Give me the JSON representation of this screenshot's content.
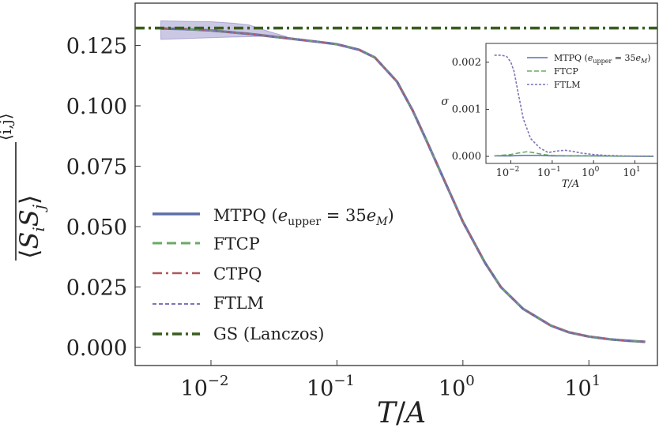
{
  "chart_data": [
    {
      "id": "main",
      "type": "line",
      "xscale": "log",
      "xlim": [
        0.0025,
        35
      ],
      "ylim": [
        -0.0075,
        0.1425
      ],
      "xlabel": "T/A",
      "ylabel": "⟨SᵢSⱼ⟩ (overline, averaged over ⟨i,j⟩)",
      "xticks": [
        {
          "value": 0.01,
          "label": "10",
          "exp": "−2"
        },
        {
          "value": 0.1,
          "label": "10",
          "exp": "−1"
        },
        {
          "value": 1,
          "label": "10",
          "exp": "0"
        },
        {
          "value": 10,
          "label": "10",
          "exp": "1"
        }
      ],
      "yticks": [
        {
          "value": 0.0,
          "label": "0.000"
        },
        {
          "value": 0.025,
          "label": "0.025"
        },
        {
          "value": 0.05,
          "label": "0.050"
        },
        {
          "value": 0.075,
          "label": "0.075"
        },
        {
          "value": 0.1,
          "label": "0.100"
        },
        {
          "value": 0.125,
          "label": "0.125"
        }
      ],
      "legend_position": "lower-left",
      "grid": false,
      "x": [
        0.004,
        0.006,
        0.01,
        0.02,
        0.04,
        0.07,
        0.1,
        0.15,
        0.2,
        0.3,
        0.4,
        0.5,
        0.7,
        1.0,
        1.5,
        2.0,
        3.0,
        5.0,
        7.0,
        10.0,
        15.0,
        20.0,
        28.0
      ],
      "series": [
        {
          "name": "MTPQ (e_upper = 35e_M)",
          "color": "#5a6fa8",
          "style": "solid",
          "width": 3.2,
          "values": [
            0.132,
            0.1318,
            0.1312,
            0.1298,
            0.128,
            0.1265,
            0.1255,
            0.1232,
            0.12,
            0.11,
            0.098,
            0.087,
            0.07,
            0.052,
            0.035,
            0.025,
            0.016,
            0.009,
            0.0062,
            0.0045,
            0.0033,
            0.0028,
            0.0023
          ]
        },
        {
          "name": "FTCP",
          "color": "#6aaa64",
          "style": "dash",
          "width": 2.6,
          "values": [
            0.132,
            0.1318,
            0.1312,
            0.1298,
            0.128,
            0.1265,
            0.1255,
            0.1232,
            0.12,
            0.11,
            0.098,
            0.087,
            0.07,
            0.052,
            0.035,
            0.025,
            0.016,
            0.009,
            0.0062,
            0.0045,
            0.0033,
            0.0028,
            0.0023
          ]
        },
        {
          "name": "CTPQ",
          "color": "#b0575a",
          "style": "dashdot",
          "width": 2.2,
          "values": [
            0.132,
            0.1318,
            0.1312,
            0.1298,
            0.128,
            0.1265,
            0.1255,
            0.1232,
            0.12,
            0.11,
            0.098,
            0.087,
            0.07,
            0.052,
            0.035,
            0.025,
            0.016,
            0.009,
            0.0062,
            0.0045,
            0.0033,
            0.0028,
            0.0023
          ]
        },
        {
          "name": "FTLM",
          "color": "#7f74b5",
          "style": "shortdash",
          "width": 1.8,
          "values": [
            0.132,
            0.1318,
            0.1312,
            0.1298,
            0.128,
            0.1265,
            0.1255,
            0.1232,
            0.12,
            0.11,
            0.098,
            0.087,
            0.07,
            0.052,
            0.035,
            0.025,
            0.016,
            0.009,
            0.0062,
            0.0045,
            0.0033,
            0.0028,
            0.0023
          ]
        },
        {
          "name": "GS (Lanczos)",
          "color": "#3a5e1e",
          "style": "dashdot",
          "width": 3.6,
          "horizontal": 0.1322
        }
      ],
      "band": {
        "color": "#8c84c4",
        "x": [
          0.004,
          0.006,
          0.01,
          0.015,
          0.02,
          0.025,
          0.03,
          0.04
        ],
        "upper": [
          0.1352,
          0.135,
          0.1348,
          0.1342,
          0.1335,
          0.1318,
          0.1305,
          0.1286
        ],
        "lower": [
          0.1275,
          0.1278,
          0.1282,
          0.1285,
          0.1286,
          0.1288,
          0.1288,
          0.128
        ]
      }
    },
    {
      "id": "inset",
      "type": "line",
      "xscale": "log",
      "xlim": [
        0.0025,
        35
      ],
      "ylim": [
        -0.00015,
        0.0024
      ],
      "xlabel": "T/A",
      "ylabel": "σ",
      "xticks": [
        {
          "value": 0.01,
          "label": "10",
          "exp": "−2"
        },
        {
          "value": 0.1,
          "label": "10",
          "exp": "−1"
        },
        {
          "value": 1,
          "label": "10",
          "exp": "0"
        },
        {
          "value": 10,
          "label": "10",
          "exp": "1"
        }
      ],
      "yticks": [
        {
          "value": 0.0,
          "label": "0.000"
        },
        {
          "value": 0.001,
          "label": "0.001"
        },
        {
          "value": 0.002,
          "label": "0.002"
        }
      ],
      "legend_position": "top-right",
      "series": [
        {
          "name": "MTPQ (e_upper = 35e_M)",
          "color": "#5a6fa8",
          "style": "solid",
          "width": 1.6,
          "x": [
            0.004,
            0.01,
            0.02,
            0.05,
            0.1,
            0.3,
            1,
            3,
            10,
            28
          ],
          "values": [
            1e-05,
            1e-05,
            2e-05,
            2e-05,
            1e-05,
            1e-05,
            1e-05,
            5e-06,
            3e-06,
            2e-06
          ]
        },
        {
          "name": "FTCP",
          "color": "#6aaa64",
          "style": "dash",
          "width": 1.6,
          "x": [
            0.004,
            0.01,
            0.015,
            0.025,
            0.04,
            0.06,
            0.1,
            0.3,
            1,
            3,
            10,
            28
          ],
          "values": [
            1e-05,
            4e-05,
            7e-05,
            0.0001,
            7e-05,
            4e-05,
            2e-05,
            1e-05,
            1e-05,
            5e-06,
            3e-06,
            2e-06
          ]
        },
        {
          "name": "FTLM",
          "color": "#7f74b5",
          "style": "shortdash",
          "width": 1.6,
          "x": [
            0.004,
            0.006,
            0.008,
            0.01,
            0.012,
            0.015,
            0.02,
            0.03,
            0.05,
            0.08,
            0.12,
            0.2,
            0.3,
            0.5,
            1,
            2,
            5,
            10,
            28
          ],
          "values": [
            0.00215,
            0.00215,
            0.00212,
            0.002,
            0.0018,
            0.00135,
            0.0008,
            0.00038,
            0.00018,
            8e-05,
            0.00011,
            0.00013,
            0.00011,
            7e-05,
            4e-05,
            2e-05,
            1e-05,
            5e-06,
            2e-06
          ]
        }
      ]
    }
  ],
  "legend_main": {
    "items": [
      {
        "key": "mtpq",
        "text": "MTPQ (",
        "color": "#5a6fa8",
        "style": "solid",
        "width": 3.6
      },
      {
        "key": "ftcp",
        "text": "FTCP",
        "color": "#6aaa64",
        "style": "dash",
        "width": 3
      },
      {
        "key": "ctpq",
        "text": "CTPQ",
        "color": "#b0575a",
        "style": "dashdot",
        "width": 2.6
      },
      {
        "key": "ftlm",
        "text": "FTLM",
        "color": "#7f74b5",
        "style": "shortdash",
        "width": 2
      },
      {
        "key": "gs",
        "text": "GS (Lanczos)",
        "color": "#3a5e1e",
        "style": "dashdot",
        "width": 3.6
      }
    ],
    "mtpq_math": {
      "e": "e",
      "sub": "upper",
      "eq": " = 35",
      "e2": "e",
      "sub2": "M",
      "close": ")"
    }
  },
  "legend_inset": {
    "items": [
      {
        "key": "mtpq",
        "text": "MTPQ (",
        "color": "#5a6fa8",
        "style": "solid",
        "width": 1.6
      },
      {
        "key": "ftcp",
        "text": "FTCP",
        "color": "#6aaa64",
        "style": "dash",
        "width": 1.6
      },
      {
        "key": "ftlm",
        "text": "FTLM",
        "color": "#7f74b5",
        "style": "shortdash",
        "width": 1.6
      }
    ]
  },
  "labels": {
    "main_x_T": "T",
    "main_x_slash": "/",
    "main_x_A": "A",
    "main_y_S1": "S",
    "main_y_i": "i",
    "main_y_S2": "S",
    "main_y_j": "j",
    "main_y_sup": "⟨i,j⟩",
    "inset_x": "T/A",
    "inset_y": "σ"
  }
}
